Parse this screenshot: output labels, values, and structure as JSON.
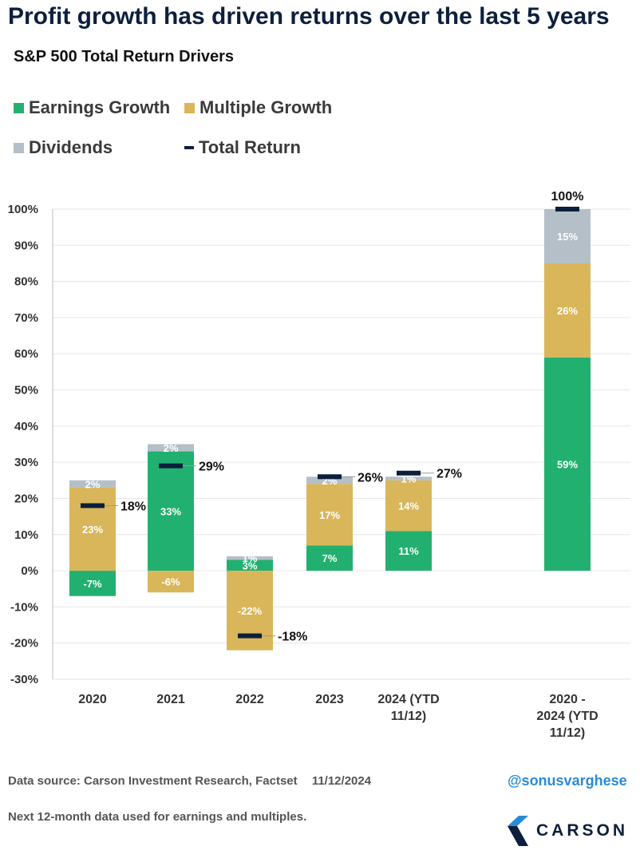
{
  "title": "Profit growth has driven returns over the last 5 years",
  "colors": {
    "earnings": "#22b070",
    "multiple": "#d9b65a",
    "dividends": "#b4bfc7",
    "total": "#0c1f3d",
    "accent": "#2a8ad8"
  },
  "legend": {
    "earnings": "Earnings Growth",
    "multiple": "Multiple Growth",
    "dividends": "Dividends",
    "total": "Total Return"
  },
  "chart_data": {
    "type": "bar",
    "stacked": true,
    "title": "S&P 500 Total Return Drivers",
    "xlabel": "",
    "ylabel": "",
    "ylim": [
      -30,
      100
    ],
    "yticks": [
      "100%",
      "90%",
      "80%",
      "70%",
      "60%",
      "50%",
      "40%",
      "30%",
      "20%",
      "10%",
      "0%",
      "-10%",
      "-20%",
      "-30%"
    ],
    "categories": [
      "2020",
      "2021",
      "2022",
      "2023",
      "2024 (YTD 11/12)",
      "2020 - 2024 (YTD 11/12)"
    ],
    "category_lines": [
      [
        "2020"
      ],
      [
        "2021"
      ],
      [
        "2022"
      ],
      [
        "2023"
      ],
      [
        "2024 (YTD",
        "11/12)"
      ],
      [
        "2020 -",
        "2024 (YTD",
        "11/12)"
      ]
    ],
    "series": [
      {
        "name": "Earnings Growth",
        "values": [
          -7,
          33,
          3,
          7,
          11,
          59
        ],
        "labels": [
          "-7%",
          "33%",
          "3%",
          "7%",
          "11%",
          "59%"
        ]
      },
      {
        "name": "Multiple Growth",
        "values": [
          23,
          -6,
          -22,
          17,
          14,
          26
        ],
        "labels": [
          "23%",
          "-6%",
          "-22%",
          "17%",
          "14%",
          "26%"
        ]
      },
      {
        "name": "Dividends",
        "values": [
          2,
          2,
          1,
          2,
          1,
          15
        ],
        "labels": [
          "2%",
          "2%",
          "1%",
          "2%",
          "1%",
          "15%"
        ]
      }
    ],
    "total_return": {
      "name": "Total Return",
      "values": [
        18,
        29,
        -18,
        26,
        27,
        100
      ],
      "labels": [
        "18%",
        "29%",
        "-18%",
        "26%",
        "27%",
        "100%"
      ]
    }
  },
  "footer": {
    "source": "Data source: Carson Investment Research, Factset",
    "date": "11/12/2024",
    "note": "Next 12-month data used for earnings and multiples.",
    "handle": "@sonusvarghese",
    "logo_text": "CARSON"
  }
}
